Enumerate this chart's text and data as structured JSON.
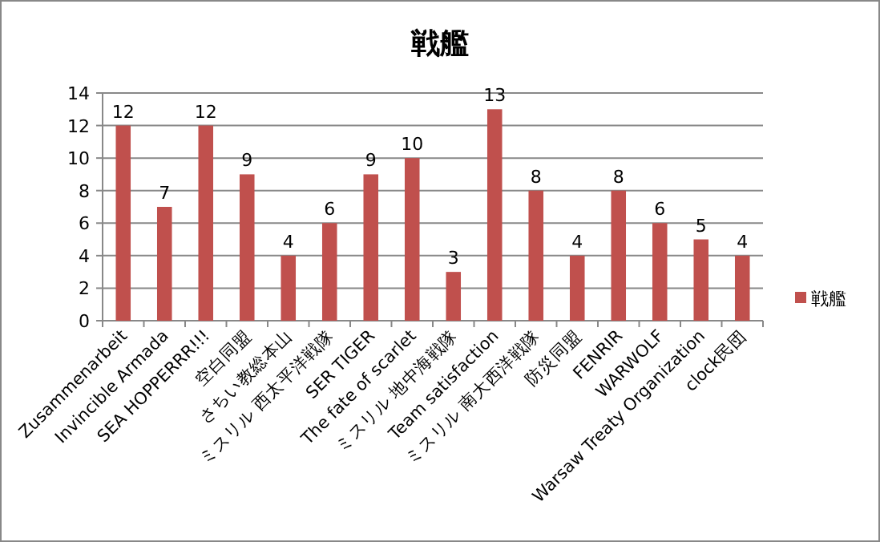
{
  "chart_data": {
    "type": "bar",
    "title": "戦艦",
    "categories": [
      "Zusammenarbeit",
      "Invincible Armada",
      "SEA HOPPERRR!!!",
      "空白同盟",
      "さちい教総本山",
      "ミスリル 西太平洋戦隊",
      "SER TIGER",
      "The fate of scarlet",
      "ミスリル 地中海戦隊",
      "Team satisfaction",
      "ミスリル 南大西洋戦隊",
      "防災同盟",
      "FENRIR",
      "WARWOLF",
      "Warsaw Treaty Organization",
      "clock民団"
    ],
    "series": [
      {
        "name": "戦艦",
        "color": "#c0504d",
        "values": [
          12,
          7,
          12,
          9,
          4,
          6,
          9,
          10,
          3,
          13,
          8,
          4,
          8,
          6,
          5,
          4
        ]
      }
    ],
    "ylim": [
      0,
      14
    ],
    "yticks": [
      0,
      2,
      4,
      6,
      8,
      10,
      12,
      14
    ],
    "grid": "y",
    "legend": "right",
    "data_labels": true
  }
}
